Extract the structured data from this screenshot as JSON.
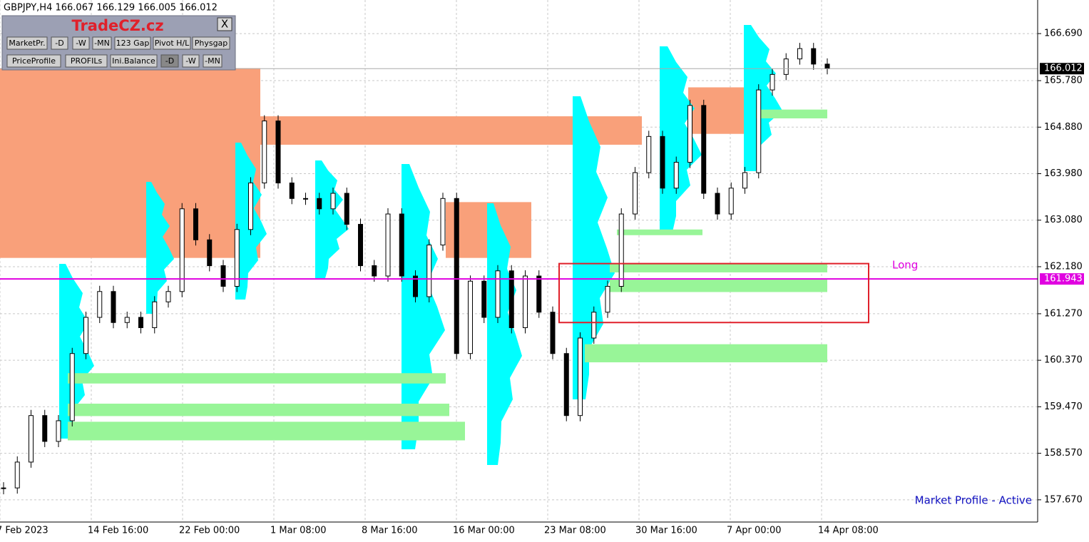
{
  "header": {
    "symbol_line": "GBPJPY,H4 166.067 166.129 166.005 166.012"
  },
  "panel": {
    "logo": "TradeCZ.cz",
    "close": "X",
    "buttons_row1": [
      "MarketPr.",
      "-D",
      "-W",
      "-MN",
      "123 Gap",
      "Pivot H/L",
      "Physgap"
    ],
    "buttons_row2": [
      "PriceProfile",
      "PROFILs",
      "Ini.Balance",
      "-D",
      "-W",
      "-MN"
    ]
  },
  "chart_data": {
    "type": "candlestick",
    "ylim": [
      157.24,
      167.34
    ],
    "yticks": [
      {
        "value": 166.69,
        "label": "166.690"
      },
      {
        "value": 165.78,
        "label": "165.780"
      },
      {
        "value": 164.88,
        "label": "164.880"
      },
      {
        "value": 163.98,
        "label": "163.980"
      },
      {
        "value": 163.08,
        "label": "163.080"
      },
      {
        "value": 162.18,
        "label": "162.180"
      },
      {
        "value": 161.27,
        "label": "161.270"
      },
      {
        "value": 160.37,
        "label": "160.370"
      },
      {
        "value": 159.47,
        "label": "159.470"
      },
      {
        "value": 158.57,
        "label": "158.570"
      },
      {
        "value": 157.67,
        "label": "157.670"
      }
    ],
    "x_labels": [
      "7 Feb 2023",
      "14 Feb 16:00",
      "22 Feb 00:00",
      "1 Mar 08:00",
      "8 Mar 16:00",
      "16 Mar 00:00",
      "23 Mar 08:00",
      "30 Mar 16:00",
      "7 Apr 00:00",
      "14 Apr 08:00"
    ],
    "closes": [
      157.9,
      158.4,
      159.3,
      158.8,
      159.2,
      160.5,
      161.2,
      161.7,
      161.1,
      161.2,
      161.0,
      161.5,
      161.7,
      163.3,
      162.7,
      162.2,
      161.8,
      162.9,
      163.8,
      165.0,
      163.8,
      163.5,
      163.5,
      163.3,
      163.6,
      163.0,
      162.2,
      162.0,
      163.2,
      162.0,
      161.6,
      162.6,
      163.5,
      160.5,
      161.9,
      161.2,
      162.1,
      161.0,
      162.0,
      161.3,
      160.5,
      159.3,
      160.8,
      161.3,
      161.8,
      163.2,
      164.0,
      164.7,
      163.7,
      164.2,
      165.3,
      163.6,
      163.2,
      163.7,
      164.0,
      165.6,
      165.9,
      166.2,
      166.4,
      166.1,
      166.012
    ],
    "zones_orange": [
      [
        162.35,
        166.02
      ],
      [
        164.54,
        165.09
      ],
      [
        164.75,
        165.65
      ],
      [
        162.35,
        163.43
      ]
    ],
    "zones_green": [
      [
        159.92,
        160.12
      ],
      [
        159.29,
        159.53
      ],
      [
        158.82,
        159.18
      ],
      [
        162.07,
        162.24
      ],
      [
        161.69,
        161.93
      ],
      [
        160.33,
        160.68
      ],
      [
        162.79,
        162.9
      ],
      [
        165.05,
        165.22
      ]
    ],
    "long_box": [
      161.1,
      162.24
    ],
    "long_label": "Long",
    "level_line": 161.943,
    "last_price": 166.012,
    "status": "Market Profile - Active",
    "grid": true,
    "colors": {
      "orange": "#f9a07a",
      "green": "#98f598",
      "profile": "#00ffff",
      "level": "#e000e0",
      "box": "#e0202a"
    }
  }
}
